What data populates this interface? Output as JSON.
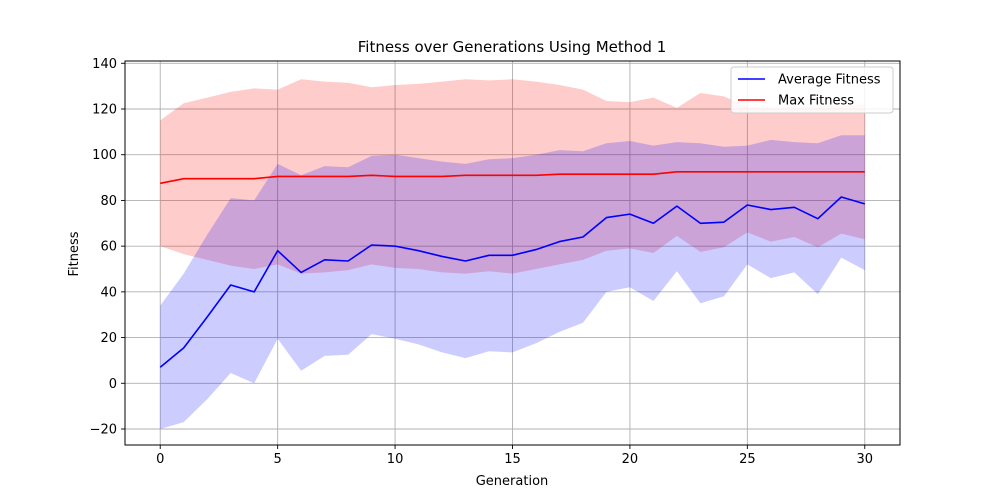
{
  "chart_data": {
    "type": "line",
    "title": "Fitness over Generations Using Method 1",
    "xlabel": "Generation",
    "ylabel": "Fitness",
    "xlim": [
      -1.5,
      31.5
    ],
    "ylim": [
      -27,
      141
    ],
    "xticks": [
      0,
      5,
      10,
      15,
      20,
      25,
      30
    ],
    "yticks": [
      -20,
      0,
      20,
      40,
      60,
      80,
      100,
      120,
      140
    ],
    "xtick_labels": [
      "0",
      "5",
      "10",
      "15",
      "20",
      "25",
      "30"
    ],
    "ytick_labels": [
      "−20",
      "0",
      "20",
      "40",
      "60",
      "80",
      "100",
      "120",
      "140"
    ],
    "grid": true,
    "legend_position": "top-right",
    "x": [
      0,
      1,
      2,
      3,
      4,
      5,
      6,
      7,
      8,
      9,
      10,
      11,
      12,
      13,
      14,
      15,
      16,
      17,
      18,
      19,
      20,
      21,
      22,
      23,
      24,
      25,
      26,
      27,
      28,
      29,
      30
    ],
    "series": [
      {
        "name": "Average Fitness",
        "color": "#0000ff",
        "band_color": "#0000ff",
        "values": [
          7,
          15.5,
          29,
          43,
          40,
          58,
          48.5,
          54,
          53.5,
          60.5,
          60,
          58,
          55.5,
          53.5,
          56,
          56,
          58.5,
          62,
          64,
          72.5,
          74,
          70,
          77.5,
          70,
          70.5,
          78,
          76,
          77,
          72,
          81.5,
          78.5
        ],
        "band_lower": [
          -20,
          -17,
          -7,
          4.5,
          0,
          19.5,
          5.5,
          12,
          12.5,
          21.5,
          19.5,
          17,
          13.5,
          11,
          14,
          13.5,
          17.5,
          22.5,
          26.5,
          40,
          42,
          36,
          49,
          35,
          38,
          52,
          46,
          48.5,
          39,
          55,
          49.5
        ],
        "band_upper": [
          34,
          48,
          65,
          81,
          80,
          96,
          91,
          95,
          94.5,
          99.5,
          100,
          98.5,
          97,
          96,
          98,
          98.5,
          100,
          102,
          101.5,
          105,
          106,
          104,
          105.5,
          105,
          103.5,
          104,
          106.5,
          105.5,
          105,
          108.5,
          108.5
        ]
      },
      {
        "name": "Max Fitness",
        "color": "#ff0000",
        "band_color": "#ff0000",
        "values": [
          87.5,
          89.5,
          89.5,
          89.5,
          89.5,
          90.5,
          90.5,
          90.5,
          90.5,
          91,
          90.5,
          90.5,
          90.5,
          91,
          91,
          91,
          91,
          91.5,
          91.5,
          91.5,
          91.5,
          91.5,
          92.5,
          92.5,
          92.5,
          92.5,
          92.5,
          92.5,
          92.5,
          92.5,
          92.5
        ],
        "band_lower": [
          60,
          56.5,
          54,
          51.5,
          50,
          52,
          48,
          48.5,
          49.5,
          52,
          50.5,
          50,
          48.5,
          48,
          49,
          48,
          50,
          52,
          54,
          58,
          59,
          57,
          64.5,
          57.5,
          59.5,
          66,
          62,
          64,
          59.5,
          65.5,
          63
        ],
        "band_upper": [
          115,
          122.5,
          125,
          127.5,
          129,
          128.5,
          133,
          132,
          131.5,
          129.5,
          130.5,
          131,
          132,
          133,
          132.5,
          133,
          132,
          130.5,
          128.5,
          123.5,
          123,
          125,
          120.5,
          127,
          125.5,
          121,
          120.5,
          121,
          121,
          121.5,
          122
        ]
      }
    ]
  }
}
